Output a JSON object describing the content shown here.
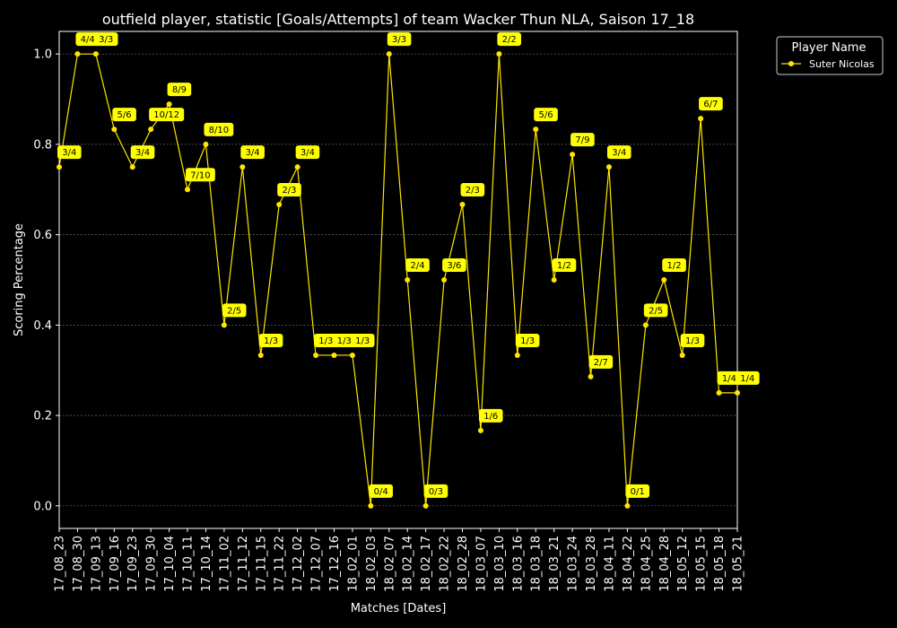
{
  "chart_data": {
    "type": "line",
    "title": "outfield player, statistic [Goals/Attempts] of team Wacker Thun NLA, Saison 17_18",
    "xlabel": "Matches [Dates]",
    "ylabel": "Scoring Percentage",
    "ylim": [
      -0.05,
      1.05
    ],
    "yticks": [
      "0.0",
      "0.2",
      "0.4",
      "0.6",
      "0.8",
      "1.0"
    ],
    "ytick_values": [
      0.0,
      0.2,
      0.4,
      0.6,
      0.8,
      1.0
    ],
    "grid": true,
    "legend": {
      "title": "Player Name",
      "position": "outside-top-right"
    },
    "colors": {
      "background": "#000000",
      "series": "#ffe600",
      "label_bg": "#ffff00",
      "grid": "#666666",
      "axis": "#ffffff"
    },
    "categories": [
      "17_08_23",
      "17_08_30",
      "17_09_13",
      "17_09_16",
      "17_09_23",
      "17_09_30",
      "17_10_04",
      "17_10_11",
      "17_10_14",
      "17_11_02",
      "17_11_12",
      "17_11_15",
      "17_11_22",
      "17_12_02",
      "17_12_07",
      "17_12_16",
      "18_02_01",
      "18_02_03",
      "18_02_07",
      "18_02_14",
      "18_02_17",
      "18_02_22",
      "18_02_28",
      "18_03_07",
      "18_03_10",
      "18_03_16",
      "18_03_18",
      "18_03_21",
      "18_03_24",
      "18_03_28",
      "18_04_11",
      "18_04_22",
      "18_04_25",
      "18_04_28",
      "18_05_12",
      "18_05_15",
      "18_05_18",
      "18_05_21"
    ],
    "series": [
      {
        "name": "Suter Nicolas",
        "values": [
          0.75,
          1.0,
          1.0,
          0.8333,
          0.75,
          0.8333,
          0.8889,
          0.7,
          0.8,
          0.4,
          0.75,
          0.3333,
          0.6667,
          0.75,
          0.3333,
          0.3333,
          0.3333,
          0.0,
          1.0,
          0.5,
          0.0,
          0.5,
          0.6667,
          0.1667,
          1.0,
          0.3333,
          0.8333,
          0.5,
          0.7778,
          0.2857,
          0.75,
          0.0,
          0.4,
          0.5,
          0.3333,
          0.8571,
          0.25,
          0.25
        ],
        "labels": [
          "3/4",
          "4/4",
          "3/3",
          "5/6",
          "3/4",
          "10/12",
          "8/9",
          "7/10",
          "8/10",
          "2/5",
          "3/4",
          "1/3",
          "2/3",
          "3/4",
          "1/3",
          "1/3",
          "1/3",
          "0/4",
          "3/3",
          "2/4",
          "0/3",
          "3/6",
          "2/3",
          "1/6",
          "2/2",
          "1/3",
          "5/6",
          "1/2",
          "7/9",
          "2/7",
          "3/4",
          "0/1",
          "2/5",
          "1/2",
          "1/3",
          "6/7",
          "1/4",
          "1/4"
        ]
      }
    ]
  }
}
